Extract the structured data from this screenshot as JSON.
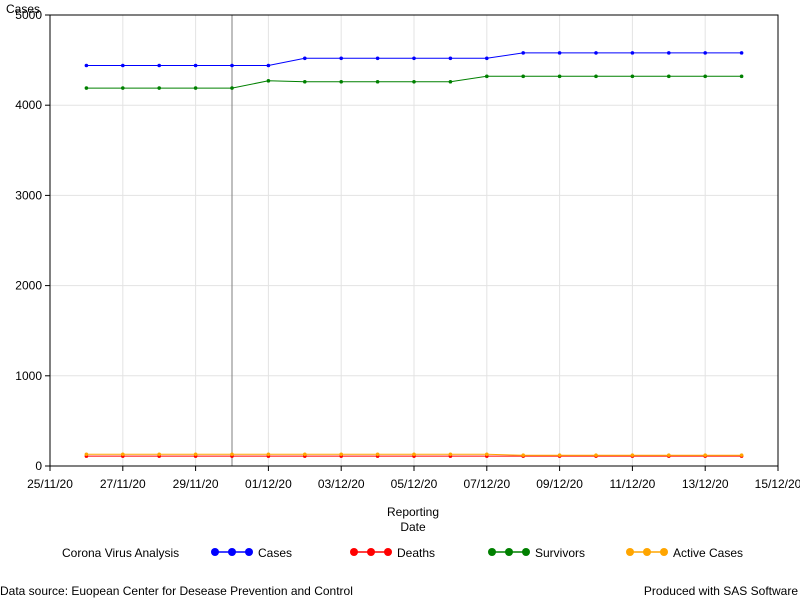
{
  "chart_data": {
    "type": "line",
    "ylabel": "Cases",
    "xlabel_lines": [
      "Reporting",
      "Date"
    ],
    "x_dates": [
      "2020-11-26",
      "2020-11-27",
      "2020-11-28",
      "2020-11-29",
      "2020-11-30",
      "2020-12-01",
      "2020-12-02",
      "2020-12-03",
      "2020-12-04",
      "2020-12-05",
      "2020-12-06",
      "2020-12-07",
      "2020-12-08",
      "2020-12-09",
      "2020-12-10",
      "2020-12-11",
      "2020-12-12",
      "2020-12-13",
      "2020-12-14"
    ],
    "x_ticks": [
      "2020-11-25",
      "2020-11-27",
      "2020-11-29",
      "2020-12-01",
      "2020-12-03",
      "2020-12-05",
      "2020-12-07",
      "2020-12-09",
      "2020-12-11",
      "2020-12-13",
      "2020-12-15"
    ],
    "x_tick_labels": [
      "25/11/20",
      "27/11/20",
      "29/11/20",
      "01/12/20",
      "03/12/20",
      "05/12/20",
      "07/12/20",
      "09/12/20",
      "11/12/20",
      "13/12/20",
      "15/12/20"
    ],
    "xlim": [
      "2020-11-25",
      "2020-12-15"
    ],
    "reference_line_x": "2020-11-30",
    "ylim": [
      0,
      5000
    ],
    "y_ticks": [
      0,
      1000,
      2000,
      3000,
      4000,
      5000
    ],
    "grid": true,
    "legend_placement": "bottom",
    "legend_title": "Corona Virus Analysis",
    "series": [
      {
        "name": "Cases",
        "color": "#0000ff",
        "values": [
          4440,
          4440,
          4440,
          4440,
          4440,
          4440,
          4520,
          4520,
          4520,
          4520,
          4520,
          4520,
          4580,
          4580,
          4580,
          4580,
          4580,
          4580,
          4580
        ]
      },
      {
        "name": "Deaths",
        "color": "#ff0000",
        "values": [
          110,
          110,
          110,
          110,
          110,
          110,
          110,
          110,
          110,
          110,
          110,
          110,
          110,
          110,
          110,
          110,
          110,
          110,
          110
        ]
      },
      {
        "name": "Survivors",
        "color": "#008000",
        "values": [
          4190,
          4190,
          4190,
          4190,
          4190,
          4270,
          4260,
          4260,
          4260,
          4260,
          4260,
          4320,
          4320,
          4320,
          4320,
          4320,
          4320,
          4320,
          4320
        ]
      },
      {
        "name": "Active Cases",
        "color": "#ffa500",
        "values": [
          130,
          130,
          130,
          130,
          130,
          130,
          130,
          130,
          130,
          130,
          130,
          130,
          120,
          120,
          120,
          120,
          120,
          120,
          120
        ]
      }
    ]
  },
  "footer": {
    "left": "Data source: Euopean Center for Desease Prevention and Control",
    "right": "Produced with SAS Software"
  }
}
